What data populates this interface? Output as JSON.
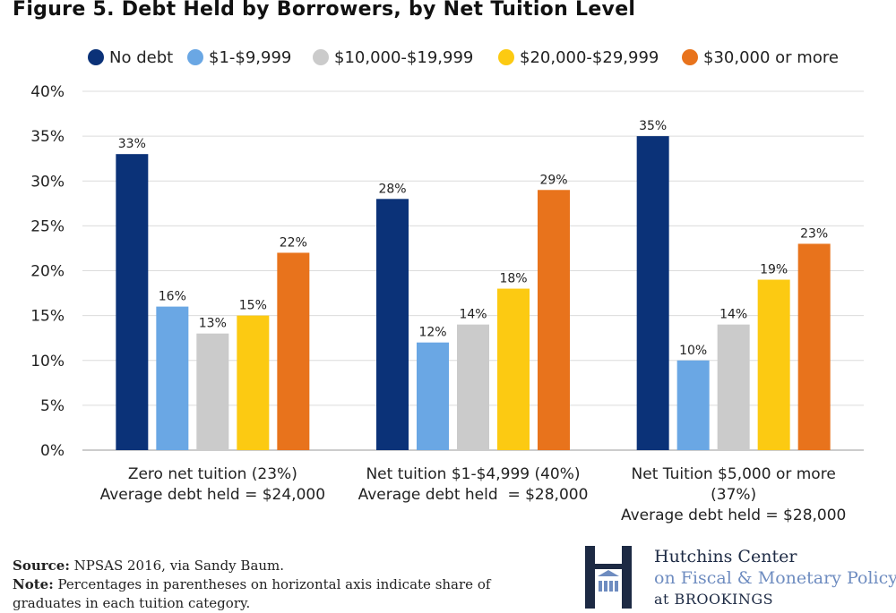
{
  "title": "Figure 5. Debt Held by Borrowers, by Net Tuition Level",
  "source_label": "Source:",
  "source_text": " NPSAS 2016, via Sandy Baum.",
  "note_label": "Note:",
  "note_text": " Percentages in parentheses on horizontal axis indicate share of graduates in each tuition category.",
  "logo": {
    "line1": "Hutchins Center",
    "line2": "on Fiscal & Monetary Policy",
    "line3": "at BROOKINGS"
  },
  "chart_data": {
    "type": "bar",
    "categories": [
      [
        "Zero net tuition (23%)",
        "Average debt held = $24,000"
      ],
      [
        "Net tuition $1-$4,999 (40%)",
        "Average debt held  = $28,000"
      ],
      [
        "Net Tuition $5,000 or more",
        "(37%)",
        "Average debt held = $28,000"
      ]
    ],
    "series": [
      {
        "name": "No debt",
        "color": "#0b3278",
        "values": [
          33,
          28,
          35
        ]
      },
      {
        "name": "$1-$9,999",
        "color": "#6aa7e4",
        "values": [
          16,
          12,
          10
        ]
      },
      {
        "name": "$10,000-$19,999",
        "color": "#cbcbcb",
        "values": [
          13,
          14,
          14
        ]
      },
      {
        "name": "$20,000-$29,999",
        "color": "#fcca12",
        "values": [
          15,
          18,
          19
        ]
      },
      {
        "name": "$30,000 or more",
        "color": "#e8731c",
        "values": [
          22,
          29,
          23
        ]
      }
    ],
    "ylim": [
      0,
      40
    ],
    "yticks": [
      "0%",
      "5%",
      "10%",
      "15%",
      "20%",
      "25%",
      "30%",
      "35%",
      "40%"
    ],
    "value_suffix": "%",
    "grid": true,
    "legend": "top"
  }
}
